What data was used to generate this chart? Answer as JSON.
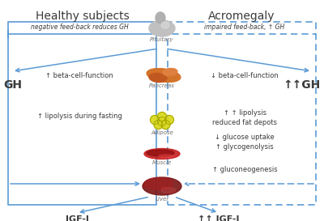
{
  "bg_color": "#ffffff",
  "left_header": "Healthy subjects",
  "right_header": "Acromegaly",
  "left_label_gh": "GH",
  "right_label_gh": "↑↑GH",
  "bottom_left_label": "IGF-I",
  "bottom_right_label": "↑↑ IGF-I",
  "pituitary_label": "Pituitary",
  "pancreas_label": "Pancreas",
  "adipose_label": "Adipose",
  "muscle_label": "Muscle",
  "liver_label": "Liver",
  "left_feedback": "negative feed-back reduces GH",
  "right_feedback": "impaired feed-back, ↑ GH",
  "left_pancreas": "↑ beta-cell-function",
  "right_pancreas": "↓ beta-cell-function",
  "left_adipose": "↑ lipolysis during fasting",
  "right_adipose1": "↑ ↑ lipolysis",
  "right_adipose2": "reduced fat depots",
  "right_muscle1": "↓ glucose uptake",
  "right_muscle2": "↑ glycogenolysis",
  "right_liver": "↑ gluconeogenesis",
  "box_color": "#5b9bd5",
  "arrow_color": "#5b9bd5",
  "text_color": "#3a3a3a",
  "organ_label_color": "#707070",
  "header_fontsize": 10,
  "body_fontsize": 6,
  "label_fontsize": 5,
  "gh_fontsize": 10,
  "igf_fontsize": 8,
  "feedback_fontsize": 5.5
}
